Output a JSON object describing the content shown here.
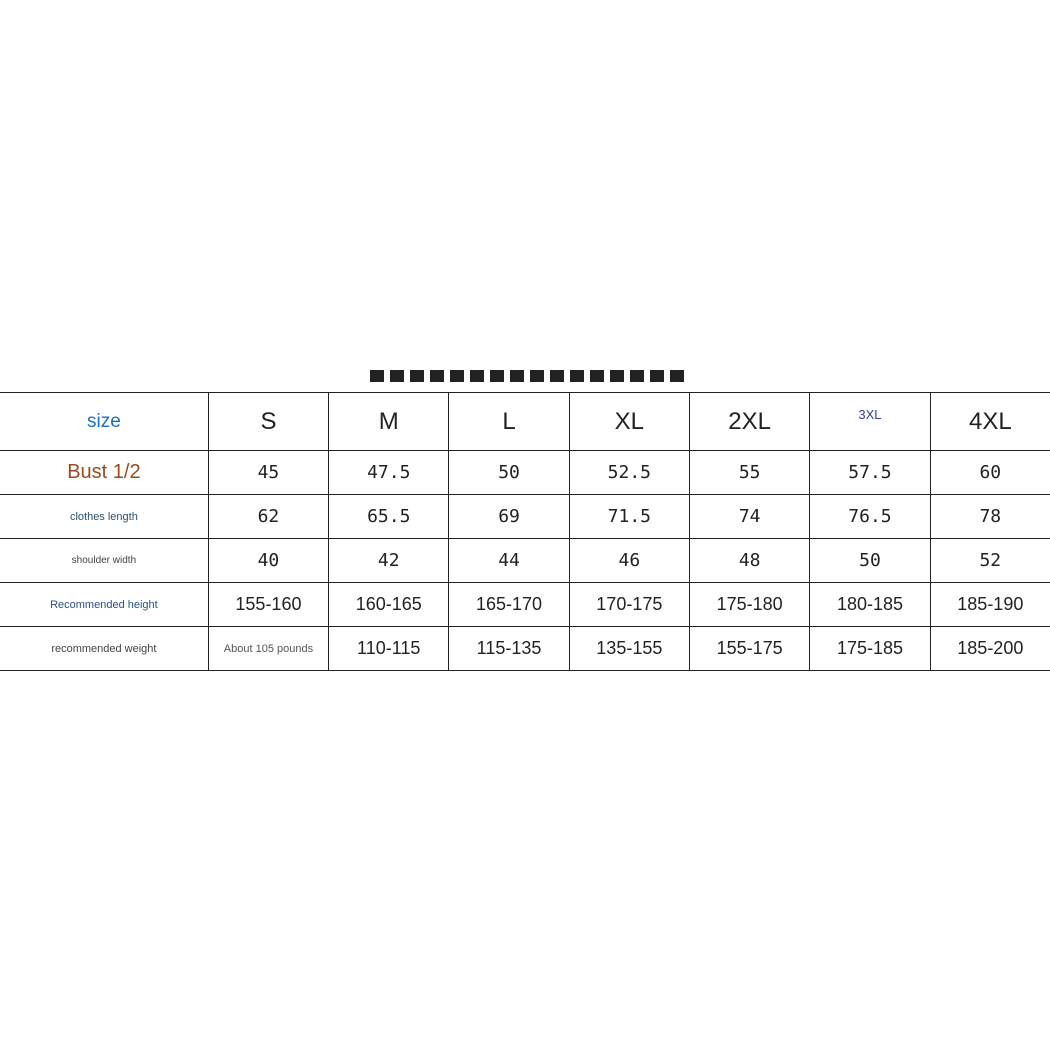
{
  "table": {
    "header": {
      "label": "size",
      "values": [
        "S",
        "M",
        "L",
        "XL",
        "2XL",
        "3XL",
        "4XL"
      ]
    },
    "rows": [
      {
        "label": "Bust 1/2",
        "values": [
          "45",
          "47.5",
          "50",
          "52.5",
          "55",
          "57.5",
          "60"
        ]
      },
      {
        "label": "clothes length",
        "values": [
          "62",
          "65.5",
          "69",
          "71.5",
          "74",
          "76.5",
          "78"
        ]
      },
      {
        "label": "shoulder width",
        "values": [
          "40",
          "42",
          "44",
          "46",
          "48",
          "50",
          "52"
        ]
      },
      {
        "label": "Recommended height",
        "values": [
          "155-160",
          "160-165",
          "165-170",
          "170-175",
          "175-180",
          "180-185",
          "185-190"
        ]
      },
      {
        "label": "recommended weight",
        "values": [
          "About 105 pounds",
          "110-115",
          "115-135",
          "135-155",
          "155-175",
          "175-185",
          "185-200"
        ]
      }
    ]
  },
  "colors": {
    "size_label": "#1a6fc4",
    "bust_label": "#9a4a1e",
    "height_label": "#2a4f8a",
    "xl3_label": "#3a3aa0"
  }
}
